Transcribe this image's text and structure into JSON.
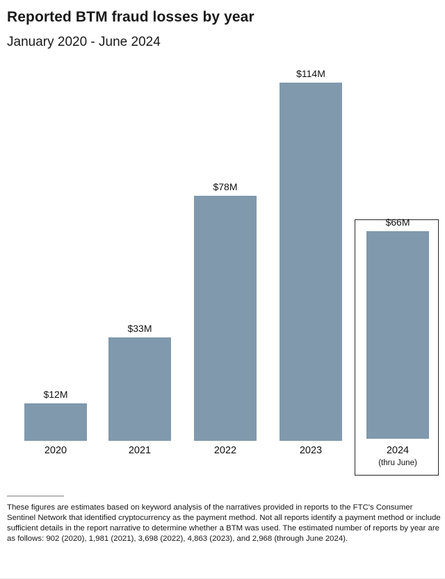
{
  "header": {
    "title": "Reported BTM fraud losses by year",
    "subtitle": "January 2020 - June 2024"
  },
  "chart_data": {
    "type": "bar",
    "title": "Reported BTM fraud losses by year",
    "subtitle": "January 2020 - June 2024",
    "categories": [
      "2020",
      "2021",
      "2022",
      "2023",
      "2024"
    ],
    "category_sublabels": [
      "",
      "",
      "",
      "",
      "(thru June)"
    ],
    "values": [
      12,
      33,
      78,
      114,
      66
    ],
    "value_labels": [
      "$12M",
      "$33M",
      "$78M",
      "$114M",
      "$66M"
    ],
    "unit": "USD millions",
    "ylim": [
      0,
      120
    ],
    "grid": false,
    "legend": false,
    "axes_shown": false,
    "bar_color": "#8099ad",
    "highlighted_category": "2024"
  },
  "footnote": {
    "text": "These figures are estimates based on keyword analysis of the narratives provided in reports to the FTC's Consumer Sentinel Network that identified cryptocurrency as the payment method. Not all reports identify a payment method or include sufficient details in the report narrative to determine whether a BTM was used. The estimated number of reports by year are as follows: 902 (2020), 1,981 (2021), 3,698 (2022), 4,863 (2023), and 2,968 (through June 2024)."
  }
}
